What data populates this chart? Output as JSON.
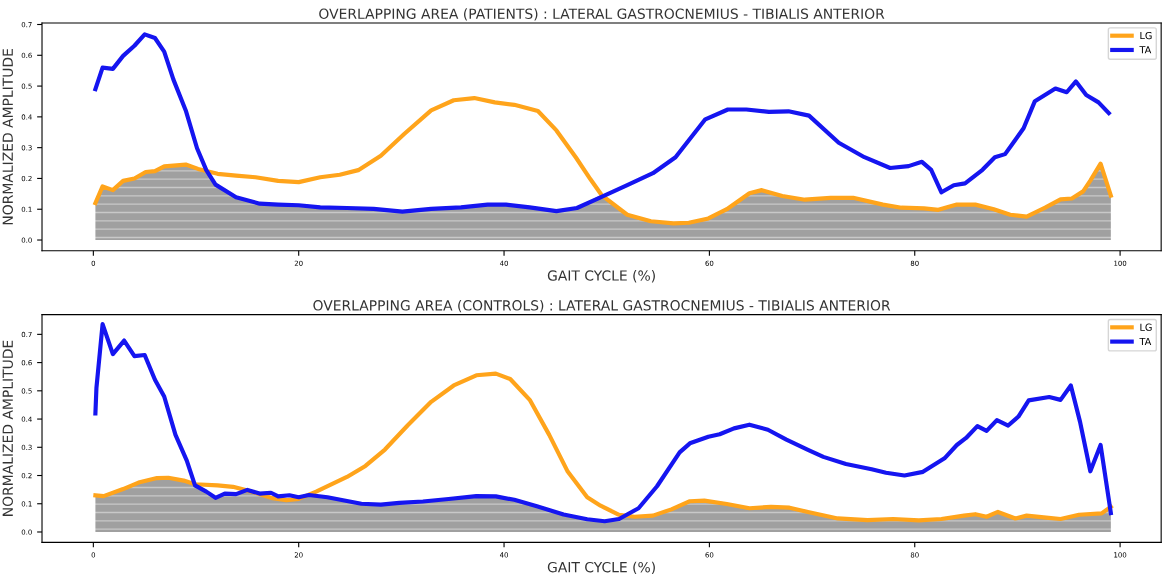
{
  "chart_data": [
    {
      "type": "line",
      "title": "OVERLAPPING AREA (PATIENTS) : LATERAL GASTROCNEMIUS - TIBIALIS ANTERIOR",
      "xlabel": "GAIT CYCLE (%)",
      "ylabel": "NORMALIZED AMPLITUDE",
      "xlim": [
        -5,
        104
      ],
      "ylim": [
        -0.035,
        0.705
      ],
      "xticks": [
        0,
        20,
        40,
        60,
        80,
        100
      ],
      "yticks": [
        {
          "value": 0,
          "label": "0.0"
        },
        0.1,
        0.2,
        0.3,
        0.4,
        0.5,
        0.6,
        0.7
      ],
      "legend": "top right",
      "grid": false,
      "series": [
        {
          "type": "area",
          "color": "#a0a0a0",
          "x": [
            0.2,
            0.9,
            1.9,
            2.9,
            4,
            5.1,
            6,
            6.9,
            9,
            10.2,
            11.3,
            11.9,
            13.9,
            16.2,
            18,
            20,
            22.1,
            24.7,
            27.3,
            30.1,
            32.9,
            35.8,
            38.4,
            40.2,
            42.5,
            45.1,
            47.1,
            49.2,
            49.5,
            52,
            54.3,
            56.5,
            58,
            59.9,
            61.7,
            63.9,
            65.1,
            67.1,
            69.3,
            71.8,
            74,
            76.9,
            78.7,
            80.9,
            82.3,
            84.1,
            85.9,
            87.7,
            89.3,
            90.9,
            92.7,
            94.2,
            95.3,
            96.4,
            97.1,
            98.1,
            99.1
          ],
          "values": [
            0.12,
            0.174,
            0.162,
            0.192,
            0.2,
            0.221,
            0.224,
            0.239,
            0.245,
            0.231,
            0.225,
            0.18,
            0.139,
            0.118,
            0.115,
            0.113,
            0.106,
            0.104,
            0.101,
            0.092,
            0.101,
            0.106,
            0.115,
            0.115,
            0.106,
            0.094,
            0.104,
            0.143,
            0.146,
            0.082,
            0.061,
            0.054,
            0.056,
            0.07,
            0.1,
            0.152,
            0.162,
            0.143,
            0.131,
            0.137,
            0.137,
            0.115,
            0.105,
            0.103,
            0.098,
            0.115,
            0.115,
            0.1,
            0.082,
            0.076,
            0.105,
            0.132,
            0.135,
            0.158,
            0.193,
            0.248,
            0.144
          ]
        },
        {
          "name": "LG",
          "color": "#ffa41b",
          "x": [
            0.2,
            0.9,
            1.9,
            2.9,
            4,
            5.1,
            6,
            6.9,
            9,
            10.2,
            12.1,
            13.9,
            15.8,
            18,
            20,
            22.1,
            24,
            25.8,
            28,
            30.3,
            32.9,
            35.1,
            37.1,
            39.1,
            41,
            43.3,
            45.1,
            47,
            48.4,
            49.5,
            52,
            54.3,
            56.5,
            58,
            59.9,
            61.7,
            63.9,
            65.1,
            67.1,
            69.3,
            71.8,
            74,
            76.9,
            78.7,
            80.9,
            82.3,
            84.1,
            85.9,
            87.7,
            89.3,
            90.9,
            92.7,
            94.2,
            95.3,
            96.4,
            97.1,
            98.1,
            99.1
          ],
          "values": [
            0.12,
            0.174,
            0.162,
            0.192,
            0.2,
            0.221,
            0.224,
            0.239,
            0.245,
            0.231,
            0.215,
            0.209,
            0.204,
            0.192,
            0.188,
            0.204,
            0.212,
            0.227,
            0.274,
            0.345,
            0.421,
            0.454,
            0.461,
            0.447,
            0.439,
            0.419,
            0.356,
            0.268,
            0.198,
            0.146,
            0.082,
            0.061,
            0.054,
            0.056,
            0.07,
            0.1,
            0.152,
            0.162,
            0.143,
            0.131,
            0.137,
            0.137,
            0.115,
            0.105,
            0.103,
            0.098,
            0.115,
            0.115,
            0.1,
            0.082,
            0.076,
            0.105,
            0.132,
            0.135,
            0.158,
            0.193,
            0.248,
            0.144
          ]
        },
        {
          "name": "TA",
          "color": "#1515f0",
          "x": [
            0.2,
            0.9,
            1.9,
            2.9,
            4,
            5,
            6,
            6.9,
            7.8,
            9,
            10.1,
            11,
            11.9,
            13.9,
            16.2,
            18,
            20,
            22.1,
            24.7,
            27.3,
            30.1,
            32.9,
            35.8,
            38.4,
            40.2,
            42.5,
            45.1,
            47.1,
            49.5,
            52,
            54.5,
            56.7,
            59.6,
            61.8,
            63.6,
            65.8,
            67.7,
            69.7,
            72.6,
            75.1,
            77.6,
            79.4,
            80.7,
            81.6,
            82.6,
            83.8,
            84.9,
            86.6,
            87.8,
            88.8,
            90.6,
            91.7,
            93.7,
            94.8,
            95.7,
            96.7,
            97.9,
            98.9
          ],
          "values": [
            0.49,
            0.56,
            0.556,
            0.598,
            0.631,
            0.668,
            0.656,
            0.612,
            0.521,
            0.421,
            0.298,
            0.227,
            0.18,
            0.139,
            0.118,
            0.115,
            0.113,
            0.106,
            0.104,
            0.101,
            0.092,
            0.101,
            0.106,
            0.115,
            0.115,
            0.106,
            0.094,
            0.104,
            0.14,
            0.178,
            0.217,
            0.269,
            0.392,
            0.424,
            0.424,
            0.416,
            0.418,
            0.404,
            0.316,
            0.269,
            0.234,
            0.24,
            0.254,
            0.228,
            0.155,
            0.178,
            0.184,
            0.228,
            0.269,
            0.279,
            0.363,
            0.451,
            0.492,
            0.48,
            0.515,
            0.471,
            0.447,
            0.412
          ]
        }
      ]
    },
    {
      "type": "line",
      "title": "OVERLAPPING AREA (CONTROLS) : LATERAL GASTROCNEMIUS - TIBIALIS ANTERIOR",
      "xlabel": "GAIT CYCLE (%)",
      "ylabel": "NORMALIZED AMPLITUDE",
      "xlim": [
        -5,
        104
      ],
      "ylim": [
        -0.037,
        0.77
      ],
      "xticks": [
        0,
        20,
        40,
        60,
        80,
        100
      ],
      "yticks": [
        {
          "value": 0,
          "label": "0.0"
        },
        0.1,
        0.2,
        0.3,
        0.4,
        0.5,
        0.6,
        0.7
      ],
      "legend": "top right",
      "grid": false,
      "series": [
        {
          "type": "area",
          "color": "#a0a0a0",
          "x": [
            0.2,
            1,
            2.9,
            4.4,
            6.2,
            7.3,
            8.8,
            9.9,
            10.2,
            11,
            11.9,
            12.8,
            13.9,
            14.6,
            15.4,
            17.3,
            18.8,
            20,
            20.9,
            21,
            22.8,
            24.7,
            26.1,
            28,
            29.8,
            32.1,
            34.6,
            37.3,
            39.2,
            41,
            43.2,
            45.8,
            48.1,
            49.8,
            51.2,
            52.2,
            52.7,
            54.5,
            56.3,
            58.1,
            59.5,
            61.7,
            63.9,
            66,
            67.8,
            69.6,
            72.5,
            75.4,
            77.9,
            80.4,
            82.6,
            84.8,
            85.9,
            87,
            88.1,
            89.8,
            90.9,
            92.8,
            94.2,
            96,
            98.2,
            98.8,
            99.1
          ],
          "values": [
            0.13,
            0.127,
            0.152,
            0.175,
            0.191,
            0.192,
            0.182,
            0.169,
            0.165,
            0.143,
            0.121,
            0.136,
            0.134,
            0.146,
            0.143,
            0.121,
            0.113,
            0.117,
            0.131,
            0.131,
            0.123,
            0.11,
            0.1,
            0.097,
            0.103,
            0.108,
            0.117,
            0.127,
            0.126,
            0.114,
            0.091,
            0.062,
            0.045,
            0.038,
            0.046,
            0.056,
            0.054,
            0.058,
            0.08,
            0.109,
            0.111,
            0.099,
            0.084,
            0.089,
            0.086,
            0.071,
            0.048,
            0.042,
            0.046,
            0.041,
            0.046,
            0.058,
            0.063,
            0.054,
            0.071,
            0.048,
            0.058,
            0.051,
            0.046,
            0.061,
            0.066,
            0.075,
            0.067
          ]
        },
        {
          "name": "LG",
          "color": "#ffa41b",
          "x": [
            0.2,
            1,
            2.9,
            4.4,
            6.2,
            7.3,
            8.8,
            9.9,
            12.1,
            13.6,
            15.4,
            17.3,
            18.8,
            20,
            21.7,
            24.7,
            26.5,
            28.4,
            30.6,
            32.9,
            35.1,
            37.3,
            39.2,
            40.6,
            42.5,
            44.4,
            46.2,
            48.1,
            49.4,
            51.2,
            52.7,
            54.5,
            56.3,
            58.1,
            59.5,
            61.7,
            63.9,
            66,
            67.8,
            69.6,
            72.5,
            75.4,
            77.9,
            80.4,
            82.6,
            84.8,
            85.9,
            87,
            88.1,
            89.8,
            90.9,
            92.8,
            94.2,
            96,
            98.2,
            99.1
          ],
          "values": [
            0.13,
            0.127,
            0.152,
            0.175,
            0.191,
            0.192,
            0.182,
            0.169,
            0.165,
            0.16,
            0.143,
            0.121,
            0.113,
            0.117,
            0.143,
            0.195,
            0.234,
            0.292,
            0.377,
            0.461,
            0.519,
            0.555,
            0.561,
            0.542,
            0.468,
            0.344,
            0.214,
            0.123,
            0.093,
            0.061,
            0.054,
            0.058,
            0.08,
            0.109,
            0.111,
            0.099,
            0.084,
            0.089,
            0.086,
            0.071,
            0.048,
            0.042,
            0.046,
            0.041,
            0.046,
            0.058,
            0.063,
            0.054,
            0.071,
            0.048,
            0.058,
            0.051,
            0.046,
            0.061,
            0.066,
            0.089
          ]
        },
        {
          "name": "TA",
          "color": "#1515f0",
          "x": [
            0.2,
            0.3,
            0.9,
            1.9,
            3,
            4,
            5,
            6,
            6.9,
            8,
            9.1,
            9.9,
            11,
            11.9,
            12.8,
            13.9,
            15,
            16.2,
            17.3,
            18,
            19.1,
            20,
            21,
            22.8,
            24.7,
            26.1,
            28,
            29.8,
            32.1,
            34.6,
            37.3,
            39.2,
            41,
            43.2,
            45.8,
            48.1,
            49.8,
            51.2,
            53.1,
            54.9,
            57.1,
            58.1,
            59.9,
            61,
            62.4,
            63.9,
            65.7,
            67.5,
            69.6,
            71.1,
            73.3,
            75.8,
            77.2,
            79,
            80.8,
            82.9,
            84.1,
            85,
            86.1,
            87,
            88,
            89.1,
            90.1,
            91.1,
            93.1,
            94.2,
            95.2,
            96.1,
            97.1,
            98.1,
            99.1
          ],
          "values": [
            0.42,
            0.51,
            0.736,
            0.63,
            0.678,
            0.623,
            0.627,
            0.539,
            0.48,
            0.344,
            0.253,
            0.165,
            0.143,
            0.121,
            0.136,
            0.134,
            0.149,
            0.136,
            0.139,
            0.126,
            0.13,
            0.123,
            0.131,
            0.123,
            0.11,
            0.1,
            0.097,
            0.103,
            0.108,
            0.117,
            0.127,
            0.126,
            0.114,
            0.091,
            0.062,
            0.045,
            0.038,
            0.046,
            0.084,
            0.162,
            0.282,
            0.314,
            0.337,
            0.346,
            0.367,
            0.38,
            0.362,
            0.327,
            0.291,
            0.266,
            0.241,
            0.222,
            0.21,
            0.2,
            0.213,
            0.261,
            0.308,
            0.333,
            0.375,
            0.358,
            0.396,
            0.377,
            0.409,
            0.466,
            0.478,
            0.468,
            0.519,
            0.39,
            0.215,
            0.308,
            0.067
          ]
        }
      ]
    }
  ]
}
